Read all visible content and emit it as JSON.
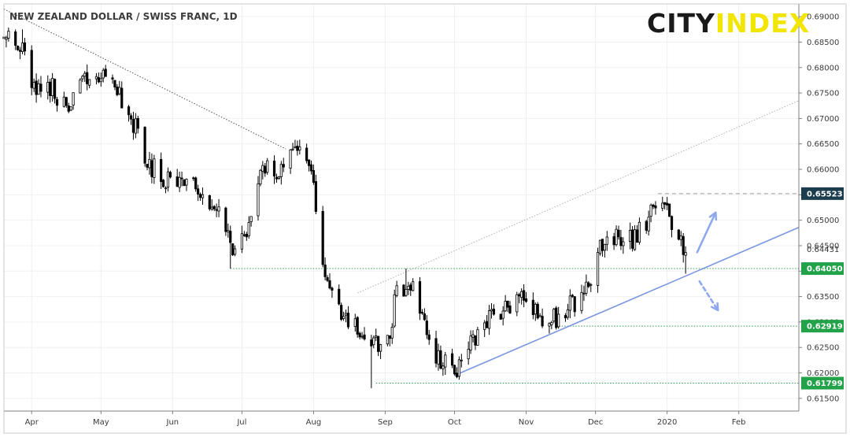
{
  "brand": {
    "part1": "CITY",
    "part2": "INDEX",
    "color1": "#1a1a1a",
    "color2": "#f2e600"
  },
  "chart_data": {
    "type": "candlestick",
    "title": "NEW ZEALAND DOLLAR / SWISS FRANC, 1D",
    "xlabel": "",
    "ylabel": "",
    "ylim": [
      0.6125,
      0.6925
    ],
    "y_ticks": [
      0.615,
      0.62,
      0.625,
      0.63,
      0.635,
      0.64,
      0.645,
      0.65,
      0.655,
      0.66,
      0.665,
      0.67,
      0.675,
      0.68,
      0.685,
      0.69
    ],
    "y_tick_labels": [
      "0.61500",
      "0.62000",
      "0.62500",
      "0.63000",
      "0.63500",
      "0.64000",
      "0.64500",
      "0.65000",
      "0.65500",
      "0.66000",
      "0.66500",
      "0.67000",
      "0.67500",
      "0.68000",
      "0.68500",
      "0.69000"
    ],
    "x_start": "2019-03-20",
    "x_end": "2020-02-27",
    "x_ticks": [
      {
        "label": "Apr",
        "date": "2019-04-01"
      },
      {
        "label": "May",
        "date": "2019-05-01"
      },
      {
        "label": "Jun",
        "date": "2019-06-01"
      },
      {
        "label": "Jul",
        "date": "2019-07-01"
      },
      {
        "label": "Aug",
        "date": "2019-08-01"
      },
      {
        "label": "Sep",
        "date": "2019-09-01"
      },
      {
        "label": "Oct",
        "date": "2019-10-01"
      },
      {
        "label": "Nov",
        "date": "2019-11-01"
      },
      {
        "label": "Dec",
        "date": "2019-12-01"
      },
      {
        "label": "2020",
        "date": "2020-01-01"
      },
      {
        "label": "Feb",
        "date": "2020-02-01"
      }
    ],
    "close_path": [
      [
        "2019-03-20",
        0.6862
      ],
      [
        "2019-03-27",
        0.684
      ],
      [
        "2019-04-03",
        0.6755
      ],
      [
        "2019-04-10",
        0.676
      ],
      [
        "2019-04-16",
        0.6715
      ],
      [
        "2019-04-23",
        0.678
      ],
      [
        "2019-04-30",
        0.679
      ],
      [
        "2019-05-08",
        0.676
      ],
      [
        "2019-05-15",
        0.669
      ],
      [
        "2019-05-22",
        0.661
      ],
      [
        "2019-05-31",
        0.6575
      ],
      [
        "2019-06-07",
        0.658
      ],
      [
        "2019-06-14",
        0.654
      ],
      [
        "2019-06-21",
        0.651
      ],
      [
        "2019-06-28",
        0.6435
      ],
      [
        "2019-07-03",
        0.647
      ],
      [
        "2019-07-10",
        0.66
      ],
      [
        "2019-07-17",
        0.659
      ],
      [
        "2019-07-24",
        0.6645
      ],
      [
        "2019-07-31",
        0.66
      ],
      [
        "2019-08-05",
        0.642
      ],
      [
        "2019-08-12",
        0.632
      ],
      [
        "2019-08-19",
        0.629
      ],
      [
        "2019-08-26",
        0.626
      ],
      [
        "2019-09-02",
        0.6255
      ],
      [
        "2019-09-06",
        0.636
      ],
      [
        "2019-09-12",
        0.638
      ],
      [
        "2019-09-18",
        0.6285
      ],
      [
        "2019-09-24",
        0.6225
      ],
      [
        "2019-10-01",
        0.62
      ],
      [
        "2019-10-08",
        0.626
      ],
      [
        "2019-10-15",
        0.63
      ],
      [
        "2019-10-22",
        0.633
      ],
      [
        "2019-10-29",
        0.635
      ],
      [
        "2019-11-05",
        0.632
      ],
      [
        "2019-11-12",
        0.63
      ],
      [
        "2019-11-19",
        0.633
      ],
      [
        "2019-11-26",
        0.635
      ],
      [
        "2019-12-03",
        0.644
      ],
      [
        "2019-12-10",
        0.647
      ],
      [
        "2019-12-17",
        0.646
      ],
      [
        "2019-12-24",
        0.6505
      ],
      [
        "2019-12-29",
        0.6545
      ],
      [
        "2020-01-03",
        0.65
      ],
      [
        "2020-01-07",
        0.645
      ],
      [
        "2020-01-09",
        0.6432
      ]
    ],
    "major_lows": [
      {
        "date": "2019-06-26",
        "low": 0.6405
      },
      {
        "date": "2019-08-26",
        "low": 0.617
      },
      {
        "date": "2019-10-01",
        "low": 0.6195
      },
      {
        "date": "2019-11-14",
        "low": 0.6285
      },
      {
        "date": "2020-01-09",
        "low": 0.6395
      }
    ],
    "major_highs": [
      {
        "date": "2019-03-28",
        "high": 0.6875
      },
      {
        "date": "2019-07-20",
        "high": 0.6672
      },
      {
        "date": "2019-09-10",
        "high": 0.6405
      },
      {
        "date": "2019-12-28",
        "high": 0.6552
      }
    ],
    "price_levels": [
      {
        "label": "0.65523",
        "value": 0.65523,
        "color": "#1c3d4e",
        "style": "grey-dashed",
        "from": "2019-12-28"
      },
      {
        "label": "0.64431",
        "value": 0.64431,
        "color": "none",
        "style": "none",
        "from": ""
      },
      {
        "label": "0.64050",
        "value": 0.6405,
        "color": "#22a34a",
        "style": "green-dotted",
        "from": "2019-06-26"
      },
      {
        "label": "0.62919",
        "value": 0.62919,
        "color": "#22a34a",
        "style": "green-dotted",
        "from": "2019-11-14"
      },
      {
        "label": "0.61799",
        "value": 0.61799,
        "color": "#22a34a",
        "style": "green-dotted",
        "from": "2019-08-28"
      }
    ],
    "trendlines": [
      {
        "kind": "support",
        "color": "#7b96e0",
        "style": "solid",
        "from": [
          "2019-10-01",
          0.6195
        ],
        "to": [
          "2020-02-27",
          0.6486
        ]
      },
      {
        "kind": "channel",
        "color": "#b0b0b0",
        "style": "dotted",
        "from": [
          "2019-08-20",
          0.6357
        ],
        "to": [
          "2020-02-27",
          0.6735
        ]
      },
      {
        "kind": "resistance",
        "color": "#555555",
        "style": "dotted",
        "from": [
          "2019-03-20",
          0.6915
        ],
        "to": [
          "2019-07-20",
          0.664
        ]
      }
    ],
    "arrows": [
      {
        "direction": "up",
        "style": "solid",
        "color": "#8fa8ee",
        "from": [
          "2020-01-14",
          0.6437
        ],
        "to": [
          "2020-01-22",
          0.6515
        ]
      },
      {
        "direction": "down",
        "style": "dashed",
        "color": "#8fa8ee",
        "from": [
          "2020-01-15",
          0.638
        ],
        "to": [
          "2020-01-23",
          0.6323
        ]
      }
    ]
  }
}
